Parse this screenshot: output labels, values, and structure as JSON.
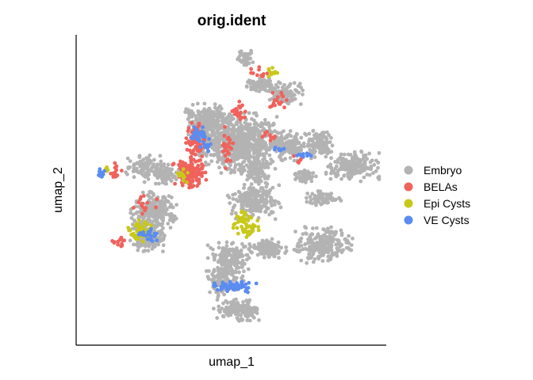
{
  "chart_data": {
    "type": "scatter",
    "title": "orig.ident",
    "xlabel": "umap_1",
    "ylabel": "umap_2",
    "axis_ticks": false,
    "grid": false,
    "legend_position": "right",
    "series": [
      {
        "name": "Embryo",
        "color": "#b3b3b3"
      },
      {
        "name": "BELAs",
        "color": "#f0625c"
      },
      {
        "name": "Epi Cysts",
        "color": "#c8c81a"
      },
      {
        "name": "VE Cysts",
        "color": "#5b8cf0"
      }
    ],
    "clusters": [
      {
        "series": "Embryo",
        "x": 0.53,
        "y": 0.66,
        "rx": 0.11,
        "ry": 0.08,
        "n": 700
      },
      {
        "series": "Embryo",
        "x": 0.42,
        "y": 0.73,
        "rx": 0.06,
        "ry": 0.05,
        "n": 250
      },
      {
        "series": "Embryo",
        "x": 0.58,
        "y": 0.57,
        "rx": 0.04,
        "ry": 0.04,
        "n": 120
      },
      {
        "series": "Embryo",
        "x": 0.24,
        "y": 0.43,
        "rx": 0.06,
        "ry": 0.05,
        "n": 220
      },
      {
        "series": "Embryo",
        "x": 0.22,
        "y": 0.34,
        "rx": 0.05,
        "ry": 0.04,
        "n": 160
      },
      {
        "series": "Embryo",
        "x": 0.27,
        "y": 0.55,
        "rx": 0.05,
        "ry": 0.03,
        "n": 100
      },
      {
        "series": "Embryo",
        "x": 0.58,
        "y": 0.46,
        "rx": 0.07,
        "ry": 0.05,
        "n": 220
      },
      {
        "series": "Embryo",
        "x": 0.63,
        "y": 0.3,
        "rx": 0.05,
        "ry": 0.03,
        "n": 120
      },
      {
        "series": "Embryo",
        "x": 0.48,
        "y": 0.2,
        "rx": 0.05,
        "ry": 0.05,
        "n": 130
      },
      {
        "series": "Embryo",
        "x": 0.52,
        "y": 0.09,
        "rx": 0.06,
        "ry": 0.03,
        "n": 140
      },
      {
        "series": "Embryo",
        "x": 0.81,
        "y": 0.31,
        "rx": 0.08,
        "ry": 0.05,
        "n": 220
      },
      {
        "series": "Embryo",
        "x": 0.75,
        "y": 0.55,
        "rx": 0.03,
        "ry": 0.02,
        "n": 60
      },
      {
        "series": "Embryo",
        "x": 0.7,
        "y": 0.65,
        "rx": 0.04,
        "ry": 0.04,
        "n": 120
      },
      {
        "series": "Embryo",
        "x": 0.81,
        "y": 0.47,
        "rx": 0.05,
        "ry": 0.02,
        "n": 80
      },
      {
        "series": "Embryo",
        "x": 0.8,
        "y": 0.66,
        "rx": 0.04,
        "ry": 0.04,
        "n": 110
      },
      {
        "series": "Embryo",
        "x": 0.68,
        "y": 0.83,
        "rx": 0.05,
        "ry": 0.03,
        "n": 110
      },
      {
        "series": "Embryo",
        "x": 0.6,
        "y": 0.86,
        "rx": 0.04,
        "ry": 0.02,
        "n": 70
      },
      {
        "series": "Embryo",
        "x": 0.55,
        "y": 0.95,
        "rx": 0.025,
        "ry": 0.02,
        "n": 50
      },
      {
        "series": "Embryo",
        "x": 0.91,
        "y": 0.58,
        "rx": 0.07,
        "ry": 0.04,
        "n": 180
      },
      {
        "series": "Embryo",
        "x": 0.5,
        "y": 0.27,
        "rx": 0.06,
        "ry": 0.04,
        "n": 140
      },
      {
        "series": "Embryo",
        "x": 0.21,
        "y": 0.58,
        "rx": 0.05,
        "ry": 0.03,
        "n": 90
      },
      {
        "series": "BELAs",
        "x": 0.36,
        "y": 0.56,
        "rx": 0.045,
        "ry": 0.04,
        "n": 130
      },
      {
        "series": "BELAs",
        "x": 0.38,
        "y": 0.67,
        "rx": 0.025,
        "ry": 0.05,
        "n": 80
      },
      {
        "series": "BELAs",
        "x": 0.53,
        "y": 0.77,
        "rx": 0.02,
        "ry": 0.03,
        "n": 25
      },
      {
        "series": "BELAs",
        "x": 0.49,
        "y": 0.64,
        "rx": 0.015,
        "ry": 0.06,
        "n": 25
      },
      {
        "series": "BELAs",
        "x": 0.11,
        "y": 0.56,
        "rx": 0.02,
        "ry": 0.03,
        "n": 15
      },
      {
        "series": "BELAs",
        "x": 0.12,
        "y": 0.32,
        "rx": 0.02,
        "ry": 0.02,
        "n": 12
      },
      {
        "series": "BELAs",
        "x": 0.66,
        "y": 0.8,
        "rx": 0.04,
        "ry": 0.03,
        "n": 18
      },
      {
        "series": "BELAs",
        "x": 0.6,
        "y": 0.9,
        "rx": 0.03,
        "ry": 0.02,
        "n": 12
      },
      {
        "series": "BELAs",
        "x": 0.63,
        "y": 0.68,
        "rx": 0.02,
        "ry": 0.02,
        "n": 10
      },
      {
        "series": "BELAs",
        "x": 0.2,
        "y": 0.45,
        "rx": 0.04,
        "ry": 0.04,
        "n": 15
      },
      {
        "series": "BELAs",
        "x": 0.73,
        "y": 0.61,
        "rx": 0.02,
        "ry": 0.02,
        "n": 8
      },
      {
        "series": "Epi Cysts",
        "x": 0.2,
        "y": 0.36,
        "rx": 0.04,
        "ry": 0.03,
        "n": 55
      },
      {
        "series": "Epi Cysts",
        "x": 0.55,
        "y": 0.38,
        "rx": 0.04,
        "ry": 0.04,
        "n": 55
      },
      {
        "series": "Epi Cysts",
        "x": 0.34,
        "y": 0.55,
        "rx": 0.02,
        "ry": 0.02,
        "n": 12
      },
      {
        "series": "Epi Cysts",
        "x": 0.64,
        "y": 0.9,
        "rx": 0.015,
        "ry": 0.02,
        "n": 10
      },
      {
        "series": "Epi Cysts",
        "x": 0.08,
        "y": 0.57,
        "rx": 0.01,
        "ry": 0.01,
        "n": 4
      },
      {
        "series": "VE Cysts",
        "x": 0.51,
        "y": 0.17,
        "rx": 0.06,
        "ry": 0.015,
        "n": 60
      },
      {
        "series": "VE Cysts",
        "x": 0.22,
        "y": 0.35,
        "rx": 0.03,
        "ry": 0.02,
        "n": 25
      },
      {
        "series": "VE Cysts",
        "x": 0.39,
        "y": 0.69,
        "rx": 0.02,
        "ry": 0.02,
        "n": 30
      },
      {
        "series": "VE Cysts",
        "x": 0.06,
        "y": 0.56,
        "rx": 0.015,
        "ry": 0.015,
        "n": 10
      },
      {
        "series": "VE Cysts",
        "x": 0.75,
        "y": 0.62,
        "rx": 0.025,
        "ry": 0.01,
        "n": 12
      },
      {
        "series": "VE Cysts",
        "x": 0.67,
        "y": 0.64,
        "rx": 0.02,
        "ry": 0.01,
        "n": 8
      },
      {
        "series": "VE Cysts",
        "x": 0.42,
        "y": 0.65,
        "rx": 0.02,
        "ry": 0.02,
        "n": 10
      }
    ]
  }
}
